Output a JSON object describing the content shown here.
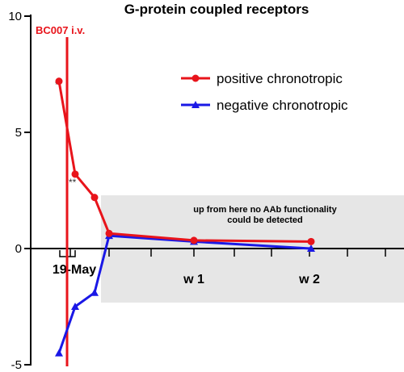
{
  "chart_data": {
    "type": "line",
    "title": "G-protein coupled receptors",
    "xlabel": "",
    "ylabel": "",
    "ylim": [
      -5,
      10
    ],
    "yticks": [
      "10",
      "5",
      "0",
      "-5"
    ],
    "x_tick_labels": [
      "19-May",
      "w 1",
      "w 2"
    ],
    "grid": false,
    "legend_position": "top-right",
    "annotations": {
      "treatment_label": "BC007 i.v.",
      "region_note": [
        "up from here no AAb functionality",
        "could be detected"
      ],
      "significance_marks": [
        "*",
        "**"
      ]
    },
    "series": [
      {
        "name": "positive chronotropic",
        "color": "#e8141b",
        "marker": "circle",
        "points": [
          {
            "x": "19-May",
            "y": 7.2
          },
          {
            "x": "19-May",
            "y": 3.2
          },
          {
            "x": "19-May",
            "y": 2.2
          },
          {
            "x": "19-May",
            "y": 0.65
          },
          {
            "x": "w 1",
            "y": 0.35
          },
          {
            "x": "w 2",
            "y": 0.3
          }
        ]
      },
      {
        "name": "negative chronotropic",
        "color": "#1a18e6",
        "marker": "triangle",
        "points": [
          {
            "x": "19-May",
            "y": -4.5
          },
          {
            "x": "19-May",
            "y": -2.5
          },
          {
            "x": "19-May",
            "y": -1.9
          },
          {
            "x": "19-May",
            "y": 0.55
          },
          {
            "x": "w 1",
            "y": 0.3
          },
          {
            "x": "w 2",
            "y": 0.0
          }
        ]
      }
    ]
  }
}
